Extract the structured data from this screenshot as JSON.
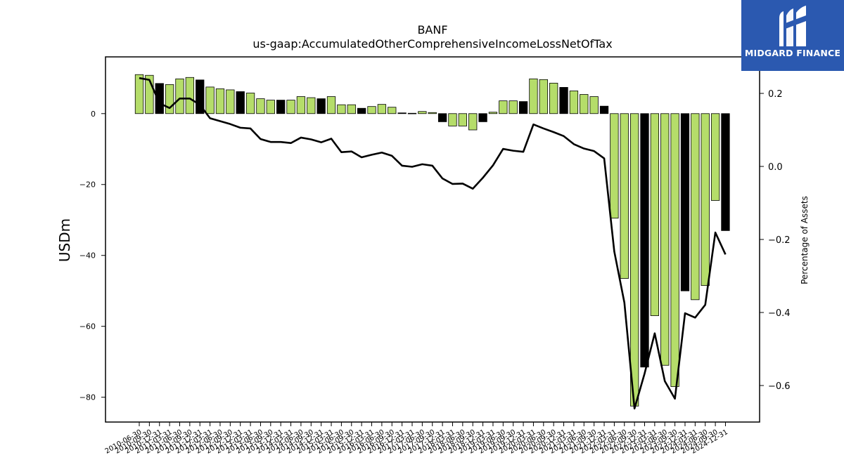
{
  "logo": {
    "text": "MIDGARD FINANCE",
    "icon": "midgard-m-icon",
    "background": "#2b59b0"
  },
  "chart_data": {
    "type": "bar+line",
    "title": "BANF",
    "subtitle": "us-gaap:AccumulatedOtherComprehensiveIncomeLossNetOfTax",
    "ylabel": "USDm",
    "y2label": "Percentage of Assets",
    "ylim": [
      -87,
      16
    ],
    "y2lim": [
      -0.7,
      0.3
    ],
    "yticks": [
      0,
      -20,
      -40,
      -60,
      -80
    ],
    "y2ticks": [
      0.2,
      0.0,
      -0.2,
      -0.4,
      -0.6
    ],
    "colors": {
      "q4_bar": "#000000",
      "other_bar": "#b5dd6a",
      "line": "#000000"
    },
    "categories": [
      "2010-06-30",
      "2010-09-30",
      "2010-12-31",
      "2011-03-31",
      "2011-06-30",
      "2011-09-30",
      "2011-12-31",
      "2012-03-31",
      "2012-06-30",
      "2012-09-30",
      "2012-12-31",
      "2013-03-31",
      "2013-06-30",
      "2013-09-30",
      "2013-12-31",
      "2014-03-31",
      "2014-06-30",
      "2014-09-30",
      "2014-12-31",
      "2015-03-31",
      "2015-06-30",
      "2015-09-30",
      "2015-12-31",
      "2016-03-31",
      "2016-06-30",
      "2016-09-30",
      "2016-12-31",
      "2017-03-31",
      "2017-06-30",
      "2017-09-30",
      "2017-12-31",
      "2018-03-31",
      "2018-06-30",
      "2018-09-30",
      "2018-12-31",
      "2019-03-31",
      "2019-06-30",
      "2019-09-30",
      "2019-12-31",
      "2020-03-31",
      "2020-06-30",
      "2020-09-30",
      "2020-12-31",
      "2021-03-31",
      "2021-06-30",
      "2021-09-30",
      "2021-12-31",
      "2022-03-31",
      "2022-06-30",
      "2022-09-30",
      "2022-12-31",
      "2023-03-31",
      "2023-06-30",
      "2023-09-30",
      "2023-12-31",
      "2024-03-31",
      "2024-06-30",
      "2024-09-30",
      "2024-12-31"
    ],
    "series": [
      {
        "values": [
          11.0,
          10.8,
          8.5,
          8.2,
          9.8,
          10.2,
          9.5,
          7.5,
          7.0,
          6.7,
          6.2,
          5.8,
          4.2,
          3.8,
          3.8,
          3.8,
          4.8,
          4.5,
          4.2,
          4.8,
          2.5,
          2.5,
          1.5,
          2.0,
          2.6,
          1.8,
          0.2,
          0.1,
          0.6,
          0.3,
          -2.3,
          -3.5,
          -3.5,
          -4.6,
          -2.3,
          0.4,
          3.6,
          3.6,
          3.4,
          9.8,
          9.6,
          8.6,
          7.4,
          6.4,
          5.4,
          4.8,
          2.1,
          -29.5,
          -46.5,
          -82.5,
          -71.5,
          -57.0,
          -71.0,
          -77.0,
          -50.0,
          -52.5,
          -48.5,
          -24.5,
          -33.0
        ]
      },
      {
        "axis": "right",
        "values": [
          0.242,
          0.237,
          0.173,
          0.16,
          0.186,
          0.186,
          0.169,
          0.132,
          0.124,
          0.116,
          0.106,
          0.104,
          0.075,
          0.067,
          0.067,
          0.064,
          0.079,
          0.074,
          0.066,
          0.076,
          0.039,
          0.041,
          0.025,
          0.032,
          0.038,
          0.029,
          0.002,
          -0.001,
          0.006,
          0.002,
          -0.033,
          -0.048,
          -0.047,
          -0.061,
          -0.031,
          0.003,
          0.048,
          0.043,
          0.04,
          0.115,
          0.104,
          0.094,
          0.083,
          0.061,
          0.049,
          0.042,
          0.022,
          -0.233,
          -0.373,
          -0.663,
          -0.567,
          -0.457,
          -0.588,
          -0.636,
          -0.402,
          -0.414,
          -0.379,
          -0.181,
          -0.241
        ]
      }
    ]
  }
}
